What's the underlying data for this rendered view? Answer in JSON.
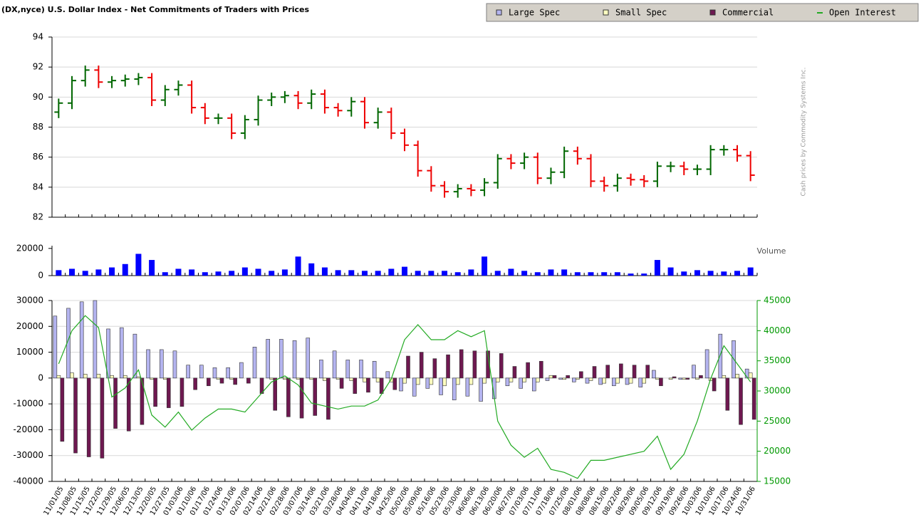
{
  "chart_data": [
    {
      "type": "ohlc",
      "title": "(DX,nyce) U.S. Dollar Index - Net Commitments of Traders with Prices",
      "note": "Cash prices by Commodity Systems Inc.",
      "up_color": "#006600",
      "down_color": "#ee0000",
      "ylim": [
        82,
        94
      ],
      "yticks": [
        82,
        84,
        86,
        88,
        90,
        92,
        94
      ],
      "grid": true,
      "open": [
        89.0,
        89.6,
        91.1,
        91.8,
        91.0,
        91.1,
        91.2,
        91.3,
        89.8,
        90.5,
        90.8,
        89.3,
        88.6,
        88.6,
        87.6,
        88.5,
        89.8,
        90.0,
        90.1,
        89.6,
        90.2,
        89.3,
        89.1,
        89.7,
        88.3,
        89.0,
        87.6,
        86.8,
        85.1,
        84.1,
        83.7,
        83.9,
        83.8,
        84.3,
        85.9,
        85.6,
        86.0,
        84.6,
        85.0,
        86.4,
        85.9,
        84.4,
        84.1,
        84.6,
        84.5,
        84.4,
        85.4,
        85.4,
        85.2,
        85.2,
        86.5,
        86.5,
        86.1
      ],
      "high": [
        89.9,
        91.4,
        92.1,
        92.1,
        91.4,
        91.5,
        91.6,
        91.6,
        90.8,
        91.1,
        91.1,
        89.6,
        88.9,
        88.9,
        88.8,
        90.1,
        90.3,
        90.4,
        90.4,
        90.5,
        90.5,
        89.6,
        90.0,
        90.0,
        89.3,
        89.3,
        87.9,
        87.1,
        85.4,
        84.4,
        84.2,
        84.2,
        84.6,
        86.2,
        86.2,
        86.3,
        86.3,
        85.3,
        86.7,
        86.7,
        86.2,
        84.7,
        84.9,
        84.9,
        84.8,
        85.7,
        85.7,
        85.7,
        85.5,
        86.8,
        86.8,
        86.8,
        86.4
      ],
      "low": [
        88.6,
        89.2,
        90.7,
        90.6,
        90.6,
        90.7,
        90.8,
        89.4,
        89.4,
        90.1,
        88.9,
        88.2,
        88.2,
        87.2,
        87.2,
        88.1,
        89.4,
        89.6,
        89.2,
        89.2,
        88.9,
        88.7,
        88.7,
        87.9,
        87.9,
        87.2,
        86.4,
        84.7,
        83.7,
        83.3,
        83.3,
        83.4,
        83.4,
        83.9,
        85.2,
        85.2,
        84.2,
        84.2,
        84.6,
        85.5,
        84.0,
        83.7,
        83.7,
        84.1,
        84.0,
        84.0,
        85.0,
        84.8,
        84.8,
        84.8,
        86.1,
        85.7,
        84.4
      ],
      "close": [
        89.6,
        91.1,
        91.8,
        91.0,
        91.1,
        91.2,
        91.3,
        89.8,
        90.5,
        90.8,
        89.3,
        88.6,
        88.6,
        87.6,
        88.5,
        89.8,
        90.0,
        90.1,
        89.6,
        90.2,
        89.3,
        89.1,
        89.7,
        88.3,
        89.0,
        87.6,
        86.8,
        85.1,
        84.1,
        83.7,
        83.9,
        83.8,
        84.3,
        85.9,
        85.6,
        86.0,
        84.6,
        85.0,
        86.4,
        85.9,
        84.4,
        84.1,
        84.6,
        84.5,
        84.4,
        85.4,
        85.4,
        85.2,
        85.2,
        86.5,
        86.5,
        86.1,
        84.8
      ]
    },
    {
      "type": "bar",
      "label": "Volume",
      "color": "#0000ff",
      "ylim": [
        0,
        22000
      ],
      "yticks": [
        0,
        20000
      ],
      "values": [
        4000,
        5000,
        3500,
        4500,
        6000,
        8500,
        16000,
        11500,
        2500,
        5000,
        4500,
        2500,
        3000,
        3500,
        6000,
        5000,
        3500,
        4500,
        14000,
        9000,
        6000,
        4000,
        4000,
        3500,
        3500,
        5000,
        6500,
        3500,
        3500,
        3500,
        2500,
        4500,
        14000,
        3500,
        5000,
        3500,
        2500,
        4500,
        4500,
        2500,
        2500,
        2500,
        2500,
        1500,
        1500,
        11500,
        6000,
        3000,
        4000,
        3500,
        3000,
        3500,
        6000
      ]
    },
    {
      "type": "bar",
      "categories": [
        "11/01/05",
        "11/08/05",
        "11/15/05",
        "11/22/05",
        "11/29/05",
        "12/06/05",
        "12/13/05",
        "12/20/05",
        "12/27/05",
        "01/03/06",
        "01/10/06",
        "01/17/06",
        "01/24/06",
        "01/31/06",
        "02/07/06",
        "02/14/06",
        "02/21/06",
        "02/28/06",
        "03/07/06",
        "03/14/06",
        "03/21/06",
        "03/28/06",
        "04/04/06",
        "04/11/06",
        "04/18/06",
        "04/25/06",
        "05/02/06",
        "05/09/06",
        "05/16/06",
        "05/23/06",
        "05/30/06",
        "06/06/06",
        "06/13/06",
        "06/20/06",
        "06/27/06",
        "07/03/06",
        "07/11/06",
        "07/18/06",
        "07/25/06",
        "08/01/06",
        "08/08/06",
        "08/15/06",
        "08/22/06",
        "08/29/06",
        "09/05/06",
        "09/12/06",
        "09/19/06",
        "09/26/06",
        "10/03/06",
        "10/10/06",
        "10/17/06",
        "10/24/06",
        "10/31/06"
      ],
      "ylim": [
        -40000,
        30000
      ],
      "yticks": [
        -40000,
        -30000,
        -20000,
        -10000,
        0,
        10000,
        20000,
        30000
      ],
      "y2lim": [
        15000,
        45000
      ],
      "y2ticks": [
        15000,
        20000,
        25000,
        30000,
        35000,
        40000,
        45000
      ],
      "y2color": "#009900",
      "grid": true,
      "series": [
        {
          "name": "Large Spec",
          "color": "#b4b4f0",
          "values": [
            24000,
            27000,
            29500,
            30000,
            19000,
            19500,
            17000,
            11000,
            11000,
            10500,
            5000,
            5000,
            4000,
            4000,
            6000,
            12000,
            15000,
            15000,
            14500,
            15500,
            7000,
            10500,
            7000,
            7000,
            6500,
            2500,
            -5000,
            -7000,
            -4000,
            -6500,
            -8500,
            -7000,
            -9000,
            -8000,
            -3000,
            -4000,
            -5000,
            -1000,
            -500,
            -1500,
            -2000,
            -2500,
            -3000,
            -2500,
            -3500,
            3000,
            0,
            -500,
            5000,
            11000,
            17000,
            14500,
            3500
          ]
        },
        {
          "name": "Small Spec",
          "color": "#ffffc0",
          "values": [
            1000,
            2000,
            1500,
            1500,
            1000,
            1000,
            500,
            -500,
            -500,
            0,
            0,
            0,
            -500,
            -500,
            0,
            0,
            -500,
            -500,
            -500,
            -500,
            -1000,
            -500,
            -1000,
            -1500,
            -1500,
            -1500,
            -2000,
            -2500,
            -2500,
            -3000,
            -2500,
            -2500,
            -2000,
            -1500,
            -1500,
            -1500,
            -1500,
            1000,
            -500,
            -500,
            -1000,
            -2000,
            -2000,
            -2000,
            -2000,
            -500,
            -500,
            -500,
            -500,
            -1000,
            1000,
            1500,
            2000
          ]
        },
        {
          "name": "Commercial",
          "color": "#6e1850",
          "values": [
            -24500,
            -29000,
            -30500,
            -31000,
            -19500,
            -20500,
            -18000,
            -11000,
            -11500,
            -11000,
            -4500,
            -3000,
            -2000,
            -2500,
            -2000,
            -6000,
            -12500,
            -15000,
            -15500,
            -14500,
            -16000,
            -4000,
            -6000,
            -5500,
            -6000,
            -4500,
            8500,
            10000,
            7500,
            9000,
            11000,
            10500,
            10500,
            9500,
            4500,
            6000,
            6500,
            1000,
            1000,
            2500,
            4500,
            5000,
            5500,
            5000,
            5000,
            -3000,
            500,
            -500,
            1000,
            -5000,
            -12500,
            -18000,
            -16000
          ]
        },
        {
          "name": "Open Interest",
          "color": "#22aa22",
          "type": "line",
          "axis": "y2",
          "values": [
            34500,
            40000,
            42500,
            40500,
            29000,
            30500,
            33500,
            26000,
            24000,
            26500,
            23500,
            25500,
            27000,
            27000,
            26500,
            29000,
            31500,
            32500,
            31000,
            28000,
            27500,
            27000,
            27500,
            27500,
            28500,
            32000,
            38500,
            41000,
            38500,
            38500,
            40000,
            39000,
            40000,
            25000,
            21000,
            19000,
            20500,
            17000,
            16500,
            15500,
            18500,
            18500,
            19000,
            19500,
            20000,
            22500,
            17000,
            19500,
            25000,
            32000,
            37500,
            34500,
            31500
          ]
        }
      ]
    }
  ]
}
